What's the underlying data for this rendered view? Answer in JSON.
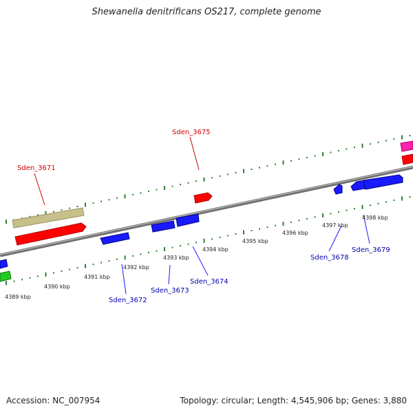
{
  "title": "Shewanella denitrificans OS217, complete genome",
  "footer": {
    "accession": "Accession: NC_007954",
    "summary": "Topology: circular; Length: 4,545,906 bp; Genes: 3,880"
  },
  "colors": {
    "backbone": "#8a8a8a",
    "tick": "#2e7d32",
    "label_forward": "#cc0000",
    "label_reverse": "#0000aa",
    "gene_red": "#ff0000",
    "gene_blue": "#1a1aff",
    "gene_olive": "#c8c08a",
    "gene_green": "#22cc22",
    "gene_magenta": "#ff22aa"
  },
  "axis_labels": [
    "4389 kbp",
    "4390 kbp",
    "4391 kbp",
    "4392 kbp",
    "4393 kbp",
    "4394 kbp",
    "4395 kbp",
    "4396 kbp",
    "4397 kbp",
    "4398 kbp"
  ],
  "gene_labels": {
    "forward": [
      "Sden_3671",
      "Sden_3675"
    ],
    "reverse": [
      "Sden_3672",
      "Sden_3673",
      "Sden_3674",
      "Sden_3678",
      "Sden_3679"
    ]
  }
}
